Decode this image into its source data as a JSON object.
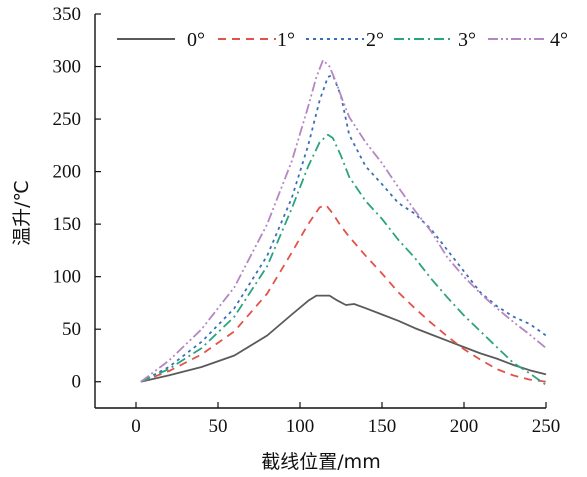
{
  "chart_data": {
    "type": "line",
    "xlabel": "截线位置/mm",
    "ylabel": "温升/℃",
    "xlim": [
      -25,
      250
    ],
    "ylim": [
      -25,
      350
    ],
    "xticks": [
      0,
      50,
      100,
      150,
      200,
      250
    ],
    "yticks": [
      0,
      50,
      100,
      150,
      200,
      250,
      300,
      350
    ],
    "grid": false,
    "legend_position": "top",
    "series": [
      {
        "name": "0°",
        "color": "#5a5a5a",
        "dash": "solid",
        "x": [
          3,
          20,
          40,
          60,
          80,
          95,
          105,
          110,
          118,
          122,
          128,
          133,
          140,
          150,
          160,
          170,
          180,
          190,
          200,
          210,
          220,
          230,
          240,
          250
        ],
        "y": [
          0,
          6,
          14,
          25,
          44,
          64,
          77,
          82,
          82,
          78,
          73,
          74,
          70,
          64,
          58,
          51,
          45,
          39,
          33,
          27,
          22,
          16,
          11,
          7
        ]
      },
      {
        "name": "1°",
        "color": "#e2524a",
        "dash": "8,6",
        "x": [
          3,
          20,
          40,
          60,
          80,
          95,
          105,
          112,
          116,
          120,
          125,
          130,
          140,
          150,
          160,
          170,
          180,
          190,
          200,
          210,
          220,
          230,
          240,
          250
        ],
        "y": [
          0,
          10,
          26,
          48,
          84,
          123,
          150,
          166,
          168,
          160,
          148,
          138,
          120,
          103,
          85,
          70,
          56,
          43,
          31,
          21,
          12,
          6,
          2,
          0
        ]
      },
      {
        "name": "2°",
        "color": "#3a6fb8",
        "dash": "3,4",
        "x": [
          3,
          20,
          40,
          60,
          80,
          95,
          105,
          112,
          117,
          120,
          125,
          130,
          140,
          150,
          160,
          170,
          180,
          190,
          200,
          210,
          220,
          230,
          240,
          250
        ],
        "y": [
          0,
          14,
          38,
          70,
          120,
          175,
          225,
          268,
          290,
          292,
          272,
          235,
          205,
          188,
          170,
          160,
          145,
          125,
          105,
          85,
          72,
          62,
          55,
          44
        ]
      },
      {
        "name": "3°",
        "color": "#2aa380",
        "dash": "10,4,2,4",
        "x": [
          3,
          20,
          40,
          60,
          80,
          95,
          105,
          112,
          117,
          120,
          125,
          130,
          140,
          150,
          160,
          170,
          180,
          190,
          200,
          210,
          220,
          230,
          240,
          250
        ],
        "y": [
          0,
          12,
          32,
          62,
          110,
          165,
          205,
          228,
          235,
          232,
          215,
          195,
          172,
          155,
          135,
          118,
          98,
          80,
          63,
          48,
          33,
          18,
          8,
          -3
        ]
      },
      {
        "name": "4°",
        "color": "#b686c2",
        "dash": "10,3,2,3,2,3",
        "x": [
          3,
          20,
          40,
          60,
          80,
          95,
          105,
          110,
          114,
          118,
          122,
          126,
          130,
          140,
          150,
          160,
          170,
          180,
          190,
          200,
          210,
          220,
          230,
          240,
          250
        ],
        "y": [
          0,
          20,
          50,
          90,
          150,
          210,
          262,
          290,
          306,
          300,
          285,
          268,
          252,
          228,
          208,
          185,
          163,
          143,
          118,
          100,
          84,
          70,
          57,
          45,
          32
        ]
      }
    ]
  }
}
